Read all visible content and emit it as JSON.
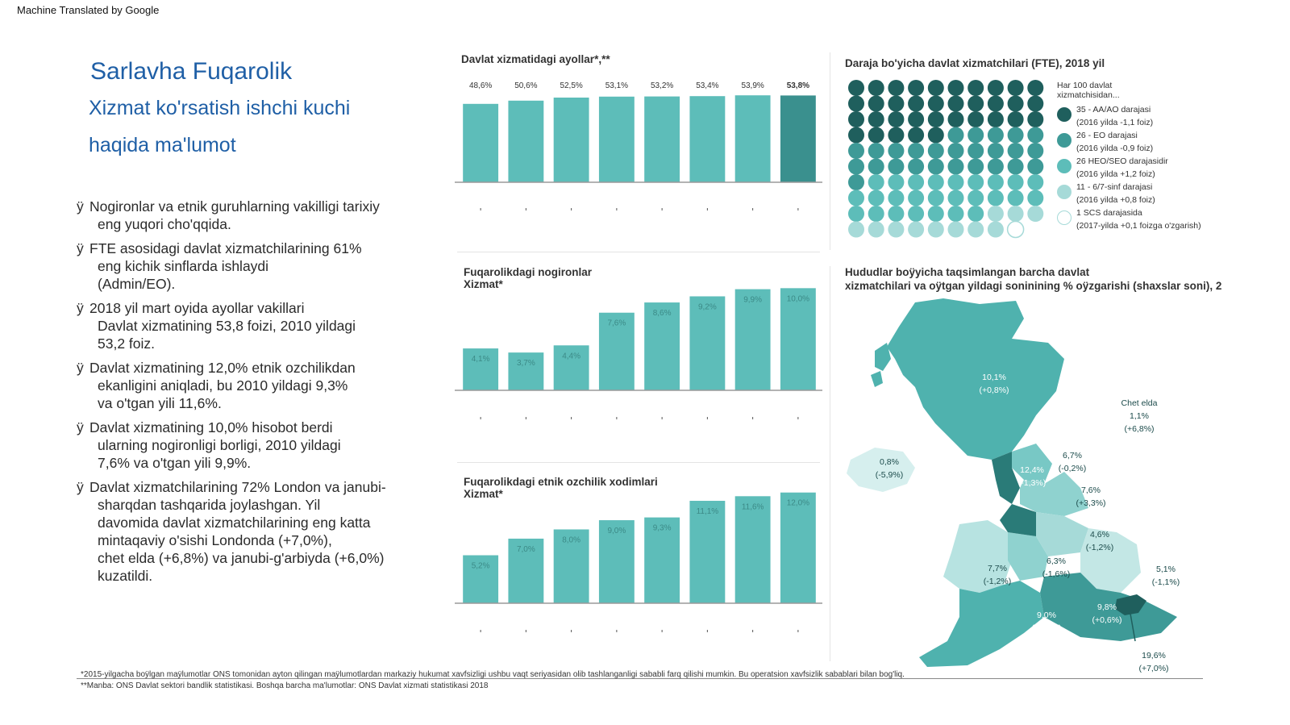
{
  "header_note": "Machine Translated by Google",
  "title": {
    "line1": "Sarlavha Fuqarolik",
    "line2": "Xizmat ko'rsatish ishchi kuchi",
    "line3": "haqida ma'lumot"
  },
  "bullet_marker": "ÿ",
  "bullets": [
    [
      "Nogironlar va etnik guruhlarning vakilligi tarixiy",
      "eng yuqori cho'qqida."
    ],
    [
      "FTE asosidagi davlat xizmatchilarining 61%",
      "eng kichik sinflarda ishlaydi",
      "(Admin/EO)."
    ],
    [
      "2018 yil mart oyida ayollar vakillari",
      "Davlat xizmatining 53,8 foizi, 2010 yildagi",
      "53,2 foiz."
    ],
    [
      "Davlat xizmatining 12,0% etnik ozchilikdan",
      "ekanligini aniqladi, bu 2010 yildagi 9,3%",
      "va o'tgan yili 11,6%."
    ],
    [
      "Davlat xizmatining 10,0% hisobot berdi",
      "ularning nogironligi borligi, 2010 yildagi",
      "7,6% va o'tgan yili 9,9%."
    ],
    [
      "Davlat xizmatchilarining 72% London va janubi-",
      "sharqdan tashqarida joylashgan. Yil",
      "davomida davlat xizmatchilarining eng katta",
      "mintaqaviy o'sishi Londonda (+7,0%),",
      "chet elda (+6,8%) va janubi-g'arbiyda (+6,0%)",
      "kuzatildi."
    ]
  ],
  "chart_data": [
    {
      "type": "bar",
      "title": "Davlat xizmatidagi ayollar*,**",
      "categories": [
        "",
        "",
        "",
        "",
        "",
        "",
        "",
        ""
      ],
      "values": [
        48.6,
        50.6,
        52.5,
        53.1,
        53.2,
        53.4,
        53.9,
        53.8
      ],
      "labels": [
        "48,6%",
        "50,6%",
        "52,5%",
        "53,1%",
        "53,2%",
        "53,4%",
        "53,9%",
        "53,8%"
      ],
      "ylim": [
        0,
        60
      ],
      "colors": [
        "#5dbdb9",
        "#5dbdb9",
        "#5dbdb9",
        "#5dbdb9",
        "#5dbdb9",
        "#5dbdb9",
        "#5dbdb9",
        "#3a908e"
      ]
    },
    {
      "type": "bar",
      "title": "Fuqarolikdagi nogironlar\nXizmat*",
      "categories": [
        "",
        "",
        "",
        "",
        "",
        "",
        "",
        ""
      ],
      "values": [
        4.1,
        3.7,
        4.4,
        7.6,
        8.6,
        9.2,
        9.9,
        10.0
      ],
      "labels": [
        "4,1%",
        "3,7%",
        "4,4%",
        "7,6%",
        "8,6%",
        "9,2%",
        "9,9%",
        "10,0%"
      ],
      "ylim": [
        0,
        10.5
      ],
      "colors": [
        "#5dbdb9",
        "#5dbdb9",
        "#5dbdb9",
        "#5dbdb9",
        "#5dbdb9",
        "#5dbdb9",
        "#5dbdb9",
        "#5dbdb9"
      ]
    },
    {
      "type": "bar",
      "title": "Fuqarolikdagi etnik ozchilik xodimlari\nXizmat*",
      "categories": [
        "",
        "",
        "",
        "",
        "",
        "",
        "",
        ""
      ],
      "values": [
        5.2,
        7.0,
        8.0,
        9.0,
        9.3,
        11.1,
        11.6,
        12.0
      ],
      "labels": [
        "5,2%",
        "7,0%",
        "8,0%",
        "9,0%",
        "9,3%",
        "11,1%",
        "11,6%",
        "12,0%"
      ],
      "ylim": [
        0,
        12.5
      ],
      "colors": [
        "#5dbdb9",
        "#5dbdb9",
        "#5dbdb9",
        "#5dbdb9",
        "#5dbdb9",
        "#5dbdb9",
        "#5dbdb9",
        "#5dbdb9"
      ]
    },
    {
      "type": "waffle",
      "title": "Daraja bo'yicha davlat xizmatchilari (FTE), 2018 yil",
      "legend_intro": "Har 100 davlat\nxizmatchisidan...",
      "groups": [
        {
          "count": 35,
          "label": "35 - AA/AO darajasi",
          "sub": "(2016 yilda -1,1 foiz)",
          "color": "#1f5f5d"
        },
        {
          "count": 26,
          "label": "26 - EO darajasi",
          "sub": "(2016 yilda -0,9 foiz)",
          "color": "#3e9a97"
        },
        {
          "count": 26,
          "label": "26 HEO/SEO darajasidir",
          "sub": "(2016 yilda +1,2 foiz)",
          "color": "#5dbdb9"
        },
        {
          "count": 11,
          "label": "11 - 6/7-sinf darajasi",
          "sub": "(2016 yilda +0,8 foiz)",
          "color": "#a6dad8"
        },
        {
          "count": 1,
          "label": "1 SCS darajasida",
          "sub": "(2017-yilda +0,1 foizga o'zgarish)",
          "color": "#ffffff"
        }
      ]
    }
  ],
  "map": {
    "title_line1": "Hududlar boÿyicha taqsimlangan barcha davlat",
    "title_line2": "xizmatchilari va oÿtgan yildagi soninining % oÿzgarishi (shaxslar soni), 2",
    "regions": [
      {
        "value": "10,1%",
        "change": "(+0,8%)",
        "dark": true
      },
      {
        "value": "0,8%",
        "change": "(-5,9%)",
        "dark": false
      },
      {
        "value": "12,4%",
        "change": "(-1,3%)",
        "dark": true
      },
      {
        "value": "6,7%",
        "change": "(-0,2%)",
        "dark": false
      },
      {
        "value": "7,6%",
        "change": "(+3,3%)",
        "dark": false
      },
      {
        "value": "4,6%",
        "change": "(-1,2%)",
        "dark": false
      },
      {
        "value": "7,7%",
        "change": "(-1,2%)",
        "dark": false
      },
      {
        "value": "6,3%",
        "change": "(-1,6%)",
        "dark": false
      },
      {
        "value": "5,1%",
        "change": "(-1,1%)",
        "dark": false
      },
      {
        "value": "9,0%",
        "change": "(+6,0%)",
        "dark": true
      },
      {
        "value": "9,8%",
        "change": "(+0,6%)",
        "dark": true
      },
      {
        "value": "19,6%",
        "change": "(+7,0%)",
        "dark": false
      },
      {
        "value": "Chet elda",
        "change": "1,1%",
        "extra": "(+6,8%)",
        "dark": false
      }
    ]
  },
  "footnotes": {
    "note1": "*2015-yilgacha boÿlgan maÿlumotlar ONS tomonidan ayton qilingan maÿlumotlardan markaziy hukumat xavfsizligi ushbu vaqt seriyasidan olib tashlanganligi sababli farq qilishi mumkin. Bu operatsion xavfsizlik sabablari bilan bog'liq.",
    "note2": "**Manba: ONS Davlat sektori bandlik statistikasi. Boshqa barcha ma'lumotlar: ONS Davlat xizmati statistikasi 2018"
  }
}
